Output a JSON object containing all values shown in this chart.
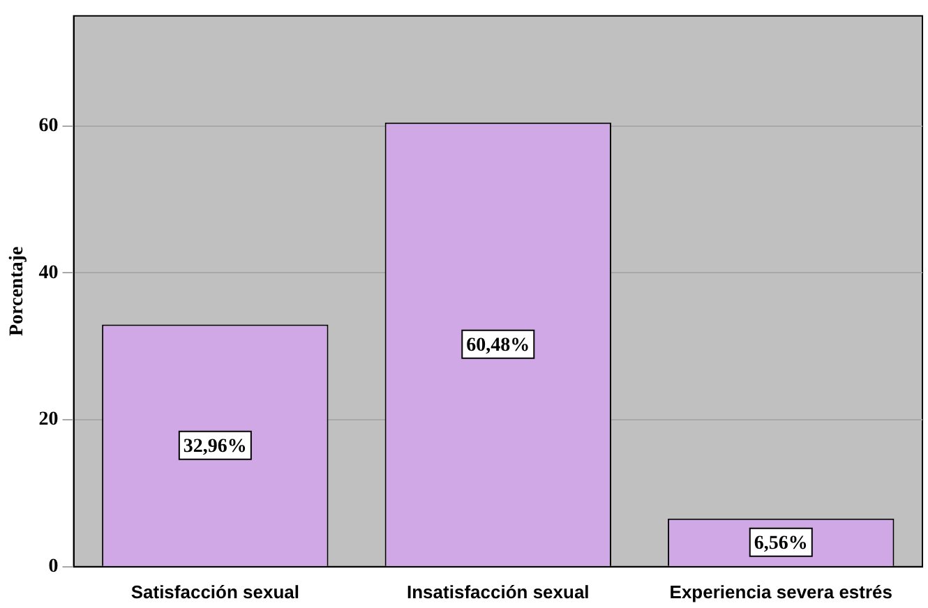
{
  "chart_data": {
    "type": "bar",
    "ylabel": "Porcentaje",
    "categories": [
      "Satisfacción sexual",
      "Insatisfacción sexual",
      "Experiencia severa estrés"
    ],
    "values": [
      32.96,
      60.48,
      6.56
    ],
    "value_labels": [
      "32,96%",
      "60,48%",
      "6,56%"
    ],
    "color": "#d0a8e6",
    "ylim": [
      0,
      75
    ],
    "yticks": [
      0,
      20,
      40,
      60
    ],
    "grid": "y"
  }
}
